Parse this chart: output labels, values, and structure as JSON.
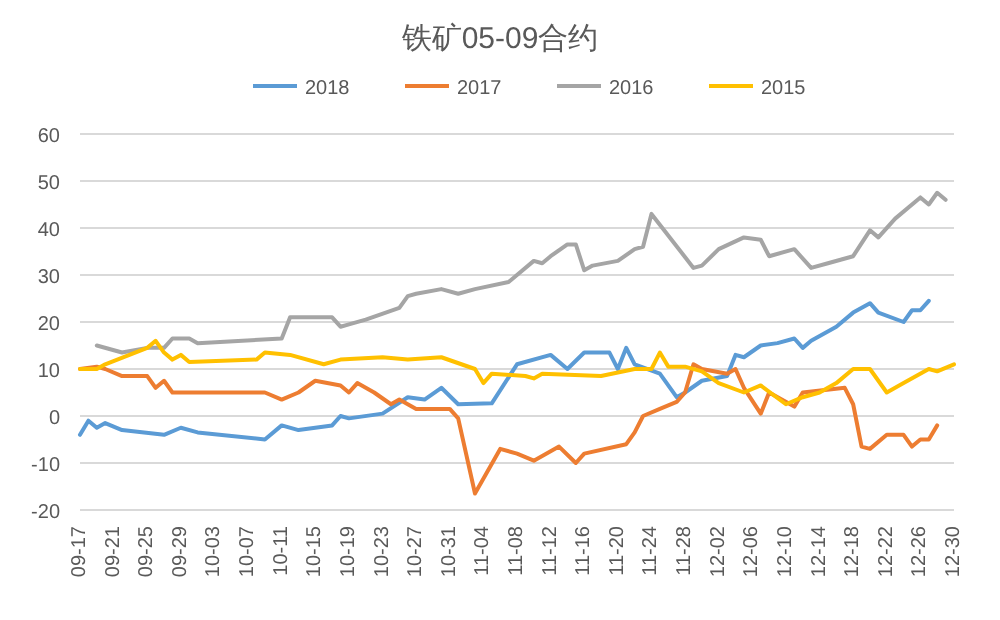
{
  "chart_data": {
    "type": "line",
    "title": "铁矿05-09合约",
    "legend": "top",
    "grid": "y",
    "marker": "none",
    "line_style": "solid",
    "xlim": [
      "--09-17",
      "--12-30"
    ],
    "xticks": [
      {
        "value": "--09-17",
        "label": "09-17"
      },
      {
        "value": "--09-21",
        "label": "09-21"
      },
      {
        "value": "--09-25",
        "label": "09-25"
      },
      {
        "value": "--09-29",
        "label": "09-29"
      },
      {
        "value": "--10-03",
        "label": "10-03"
      },
      {
        "value": "--10-07",
        "label": "10-07"
      },
      {
        "value": "--10-11",
        "label": "10-11"
      },
      {
        "value": "--10-15",
        "label": "10-15"
      },
      {
        "value": "--10-19",
        "label": "10-19"
      },
      {
        "value": "--10-23",
        "label": "10-23"
      },
      {
        "value": "--10-27",
        "label": "10-27"
      },
      {
        "value": "--10-31",
        "label": "10-31"
      },
      {
        "value": "--11-04",
        "label": "11-04"
      },
      {
        "value": "--11-08",
        "label": "11-08"
      },
      {
        "value": "--11-12",
        "label": "11-12"
      },
      {
        "value": "--11-16",
        "label": "11-16"
      },
      {
        "value": "--11-20",
        "label": "11-20"
      },
      {
        "value": "--11-24",
        "label": "11-24"
      },
      {
        "value": "--11-28",
        "label": "11-28"
      },
      {
        "value": "--12-02",
        "label": "12-02"
      },
      {
        "value": "--12-06",
        "label": "12-06"
      },
      {
        "value": "--12-10",
        "label": "12-10"
      },
      {
        "value": "--12-14",
        "label": "12-14"
      },
      {
        "value": "--12-18",
        "label": "12-18"
      },
      {
        "value": "--12-22",
        "label": "12-22"
      },
      {
        "value": "--12-26",
        "label": "12-26"
      },
      {
        "value": "--12-30",
        "label": "12-30"
      }
    ],
    "ylim": [
      -20,
      60
    ],
    "yticks": [
      -20,
      -10,
      0,
      10,
      20,
      30,
      40,
      50,
      60
    ],
    "series": [
      {
        "name": "2018",
        "color": "#5b9bd5",
        "x": [
          "--09-17",
          "--09-18",
          "--09-19",
          "--09-20",
          "--09-22",
          "--09-27",
          "--09-29",
          "--10-01",
          "--10-09",
          "--10-11",
          "--10-13",
          "--10-17",
          "--10-18",
          "--10-19",
          "--10-23",
          "--10-26",
          "--10-28",
          "--10-30",
          "--11-01",
          "--11-05",
          "--11-08",
          "--11-12",
          "--11-14",
          "--11-16",
          "--11-19",
          "--11-20",
          "--11-21",
          "--11-22",
          "--11-25",
          "--11-27",
          "--11-28",
          "--11-30",
          "--12-03",
          "--12-04",
          "--12-05",
          "--12-07",
          "--12-09",
          "--12-11",
          "--12-12",
          "--12-13",
          "--12-16",
          "--12-18",
          "--12-20",
          "--12-21",
          "--12-24",
          "--12-25",
          "--12-26",
          "--12-27"
        ],
        "values": [
          -4,
          -1,
          -2.5,
          -1.5,
          -3,
          -4,
          -2.5,
          -3.5,
          -5,
          -2,
          -3,
          -2,
          0,
          -0.5,
          0.5,
          4,
          3.5,
          6,
          2.5,
          2.7,
          11,
          13,
          10,
          13.5,
          13.5,
          10,
          14.5,
          11,
          9,
          4,
          5,
          7.5,
          8.5,
          13,
          12.5,
          15,
          15.5,
          16.5,
          14.5,
          16,
          19,
          22,
          24,
          22,
          20,
          22.5,
          22.5,
          24.5
        ]
      },
      {
        "name": "2017",
        "color": "#ed7d31",
        "x": [
          "--09-17",
          "--09-19",
          "--09-20",
          "--09-22",
          "--09-25",
          "--09-26",
          "--09-27",
          "--09-28",
          "--10-09",
          "--10-11",
          "--10-13",
          "--10-15",
          "--10-18",
          "--10-19",
          "--10-20",
          "--10-22",
          "--10-24",
          "--10-25",
          "--10-27",
          "--10-31",
          "--11-01",
          "--11-03",
          "--11-06",
          "--11-08",
          "--11-10",
          "--11-13",
          "--11-15",
          "--11-16",
          "--11-21",
          "--11-22",
          "--11-23",
          "--11-25",
          "--11-27",
          "--11-28",
          "--11-29",
          "--11-30",
          "--12-03",
          "--12-04",
          "--12-05",
          "--12-07",
          "--12-08",
          "--12-11",
          "--12-12",
          "--12-17",
          "--12-18",
          "--12-19",
          "--12-20",
          "--12-22",
          "--12-24",
          "--12-25",
          "--12-26",
          "--12-27",
          "--12-28"
        ],
        "values": [
          10,
          10.5,
          10,
          8.5,
          8.5,
          6,
          7.5,
          5,
          5,
          3.5,
          5,
          7.5,
          6.5,
          5,
          7,
          5,
          2.5,
          3.5,
          1.5,
          1.5,
          -0.5,
          -16.5,
          -7,
          -8,
          -9.5,
          -6.5,
          -10,
          -8,
          -6,
          -3.5,
          0,
          1.5,
          3,
          5,
          11,
          10,
          9,
          10,
          6,
          0.5,
          5,
          2,
          5,
          6,
          2.5,
          -6.5,
          -7,
          -4,
          -4,
          -6.5,
          -5,
          -5,
          -2
        ]
      },
      {
        "name": "2016",
        "color": "#a5a5a5",
        "x": [
          "--09-19",
          "--09-22",
          "--09-25",
          "--09-27",
          "--09-28",
          "--09-30",
          "--10-01",
          "--10-11",
          "--10-12",
          "--10-17",
          "--10-18",
          "--10-19",
          "--10-21",
          "--10-25",
          "--10-26",
          "--10-27",
          "--10-30",
          "--11-01",
          "--11-03",
          "--11-07",
          "--11-10",
          "--11-11",
          "--11-12",
          "--11-14",
          "--11-15",
          "--11-16",
          "--11-17",
          "--11-20",
          "--11-22",
          "--11-23",
          "--11-24",
          "--11-29",
          "--11-30",
          "--12-02",
          "--12-05",
          "--12-07",
          "--12-08",
          "--12-11",
          "--12-13",
          "--12-15",
          "--12-18",
          "--12-20",
          "--12-21",
          "--12-23",
          "--12-26",
          "--12-27",
          "--12-28",
          "--12-29"
        ],
        "values": [
          15,
          13.5,
          14.5,
          14.5,
          16.5,
          16.5,
          15.5,
          16.5,
          21,
          21,
          19,
          19.5,
          20.5,
          23,
          25.5,
          26,
          27,
          26,
          27,
          28.5,
          33,
          32.5,
          34,
          36.5,
          36.5,
          31,
          32,
          33,
          35.5,
          36,
          43,
          31.5,
          32,
          35.5,
          38,
          37.5,
          34,
          35.5,
          31.5,
          32.5,
          34,
          39.5,
          38,
          42,
          46.5,
          45,
          47.5,
          46
        ]
      },
      {
        "name": "2015",
        "color": "#ffc000",
        "x": [
          "--09-17",
          "--09-19",
          "--09-20",
          "--09-25",
          "--09-26",
          "--09-27",
          "--09-28",
          "--09-29",
          "--09-30",
          "--10-08",
          "--10-09",
          "--10-12",
          "--10-16",
          "--10-18",
          "--10-23",
          "--10-26",
          "--10-30",
          "--11-03",
          "--11-04",
          "--11-05",
          "--11-09",
          "--11-10",
          "--11-11",
          "--11-18",
          "--11-22",
          "--11-24",
          "--11-25",
          "--11-26",
          "--11-28",
          "--11-30",
          "--12-02",
          "--12-05",
          "--12-07",
          "--12-10",
          "--12-12",
          "--12-14",
          "--12-16",
          "--12-18",
          "--12-20",
          "--12-22",
          "--12-24",
          "--12-27",
          "--12-28",
          "--12-30"
        ],
        "values": [
          10,
          10,
          11,
          14.5,
          16,
          13.5,
          12,
          13,
          11.5,
          12,
          13.5,
          13,
          11,
          12,
          12.5,
          12,
          12.5,
          10,
          7,
          9,
          8.5,
          8,
          9,
          8.5,
          10,
          10,
          13.5,
          10.5,
          10.5,
          9.5,
          7,
          5,
          6.5,
          2.5,
          4,
          5,
          7,
          10,
          10,
          5,
          7,
          10,
          9.5,
          11
        ]
      }
    ]
  }
}
